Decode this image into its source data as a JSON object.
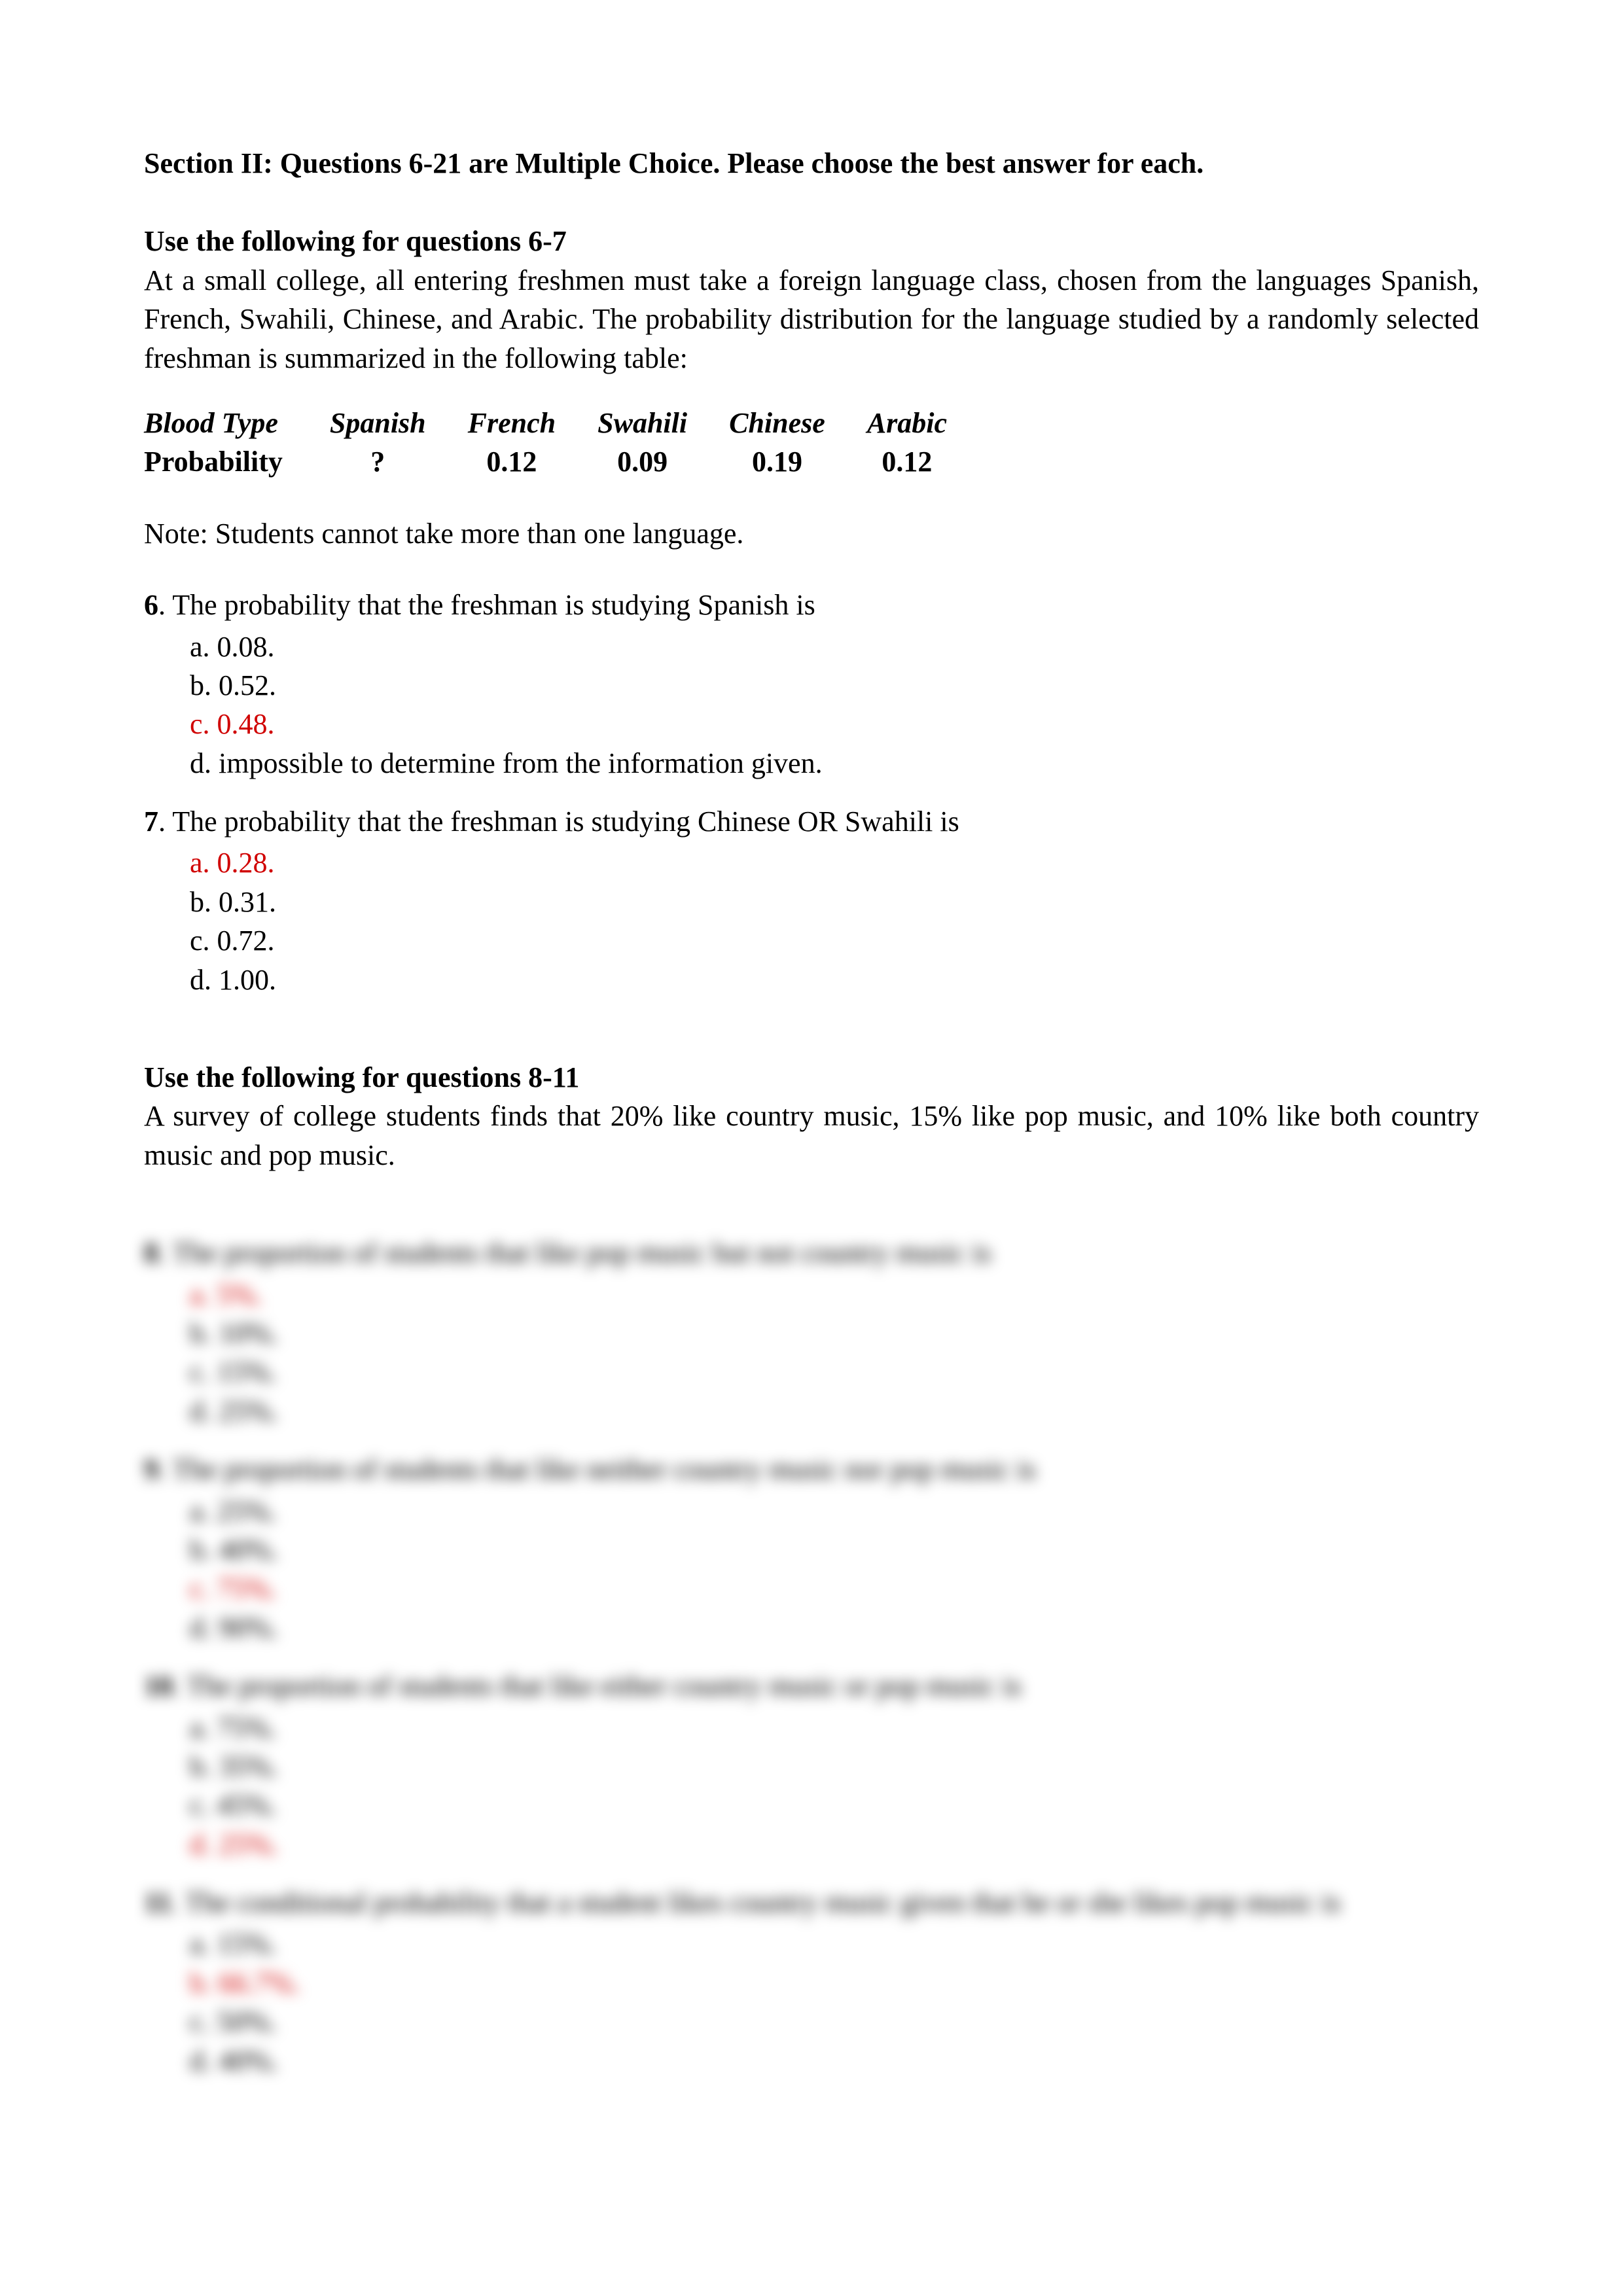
{
  "section_heading": "Section II: Questions 6-21 are Multiple Choice. Please choose the best answer for each.",
  "block1": {
    "heading": "Use the following for questions 6-7",
    "paragraph": "At a small college, all entering freshmen must take a foreign language class, chosen from the languages Spanish, French, Swahili, Chinese, and Arabic.  The probability distribution for the language studied by a randomly selected freshman is summarized in the following table:",
    "table": {
      "row1_label": "Blood Type",
      "row2_label": "Probability",
      "cols": [
        "Spanish",
        "French",
        "Swahili",
        "Chinese",
        "Arabic"
      ],
      "probs": [
        "?",
        "0.12",
        "0.09",
        "0.19",
        "0.12"
      ]
    },
    "note": "Note: Students cannot take more than one language."
  },
  "q6": {
    "num": "6",
    "text": ". The probability that the freshman is studying Spanish is",
    "a": "a. 0.08.",
    "b": "b. 0.52.",
    "c": "c. 0.48.",
    "d": "d. impossible to determine from the information given.",
    "correct": "c"
  },
  "q7": {
    "num": "7",
    "text": ". The probability that the freshman is studying Chinese OR Swahili is",
    "a": "a.  0.28.",
    "b": "b.  0.31.",
    "c": "c.  0.72.",
    "d": "d. 1.00.",
    "correct": "a"
  },
  "block2": {
    "heading": "Use the following for questions 8-11",
    "paragraph": "A survey of college students finds that 20% like country music, 15% like pop music, and 10% like both country music and pop music."
  },
  "q8": {
    "num": "8",
    "text": ". The proportion of students that like pop music but not country music is",
    "a": "a. 5%.",
    "b": "b. 10%.",
    "c": "c. 15%.",
    "d": "d. 25%.",
    "correct": "a"
  },
  "q9": {
    "num": "9",
    "text": ". The proportion of students that like neither country music nor pop music is",
    "a": "a. 25%.",
    "b": "b. 40%.",
    "c": "c. 75%.",
    "d": "d. 90%.",
    "correct": "c"
  },
  "q10": {
    "num": "10",
    "text": ". The proportion of students that like either country music or pop music is",
    "a": "a. 75%.",
    "b": "b. 35%.",
    "c": "c. 45%.",
    "d": "d. 25%.",
    "correct": "d"
  },
  "q11": {
    "num": "11",
    "text": ".  The conditional probability that a student likes country music given that he or she likes pop music is",
    "a": "a. 15%.",
    "b": "b. 66.7%.",
    "c": "c. 50%.",
    "d": "d. 40%.",
    "correct": "b"
  },
  "colors": {
    "text": "#000000",
    "answer": "#d00000",
    "background": "#ffffff"
  }
}
